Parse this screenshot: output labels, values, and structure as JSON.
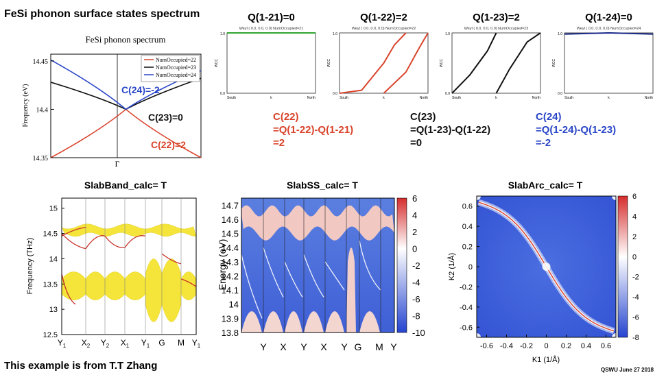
{
  "slide": {
    "title": "FeSi  phonon surface states spectrum",
    "credit": "This example is from T.T Zhang",
    "footer": "QSWU June 27 2018"
  },
  "colors": {
    "red": "#d9432b",
    "black": "#111111",
    "blue": "#2a46c8",
    "green": "#2ea52e",
    "navy": "#1a2a8a",
    "yellow": "#f5e53a"
  },
  "notes": {
    "c22": [
      "C(22)",
      "=Q(1-22)-Q(1-21)",
      "=2"
    ],
    "c23": [
      "C(23)",
      "=Q(1-23)-Q(1-22)",
      "=0"
    ],
    "c24": [
      "C(24)",
      "=Q(1-24)-Q(1-23)",
      "=-2"
    ]
  },
  "chart_data": [
    {
      "type": "line",
      "title": "FeSi phonon spectrum",
      "ylabel": "Frequency (eV)",
      "x_tick": "Γ",
      "ylim": [
        14.35,
        14.46
      ],
      "yticks": [
        "14.45",
        "14.4",
        "14.35"
      ],
      "legend": [
        "NumOccupied=22",
        "NumOccupied=23",
        "NumOccupied=24"
      ],
      "legend_position": "top-right",
      "annotations": [
        "C(24)=-2",
        "C(23)=0",
        "C(22)=2"
      ],
      "series": [
        {
          "name": "NumOccupied=22",
          "color": "red",
          "x": [
            -1,
            0,
            1
          ],
          "y": [
            14.35,
            14.4,
            14.35
          ]
        },
        {
          "name": "NumOccupied=23",
          "color": "black",
          "x": [
            -1,
            0,
            1
          ],
          "y": [
            14.428,
            14.4,
            14.432
          ]
        },
        {
          "name": "NumOccupied=24",
          "color": "blue",
          "x": [
            -1,
            0,
            1
          ],
          "y": [
            14.451,
            14.4,
            14.44
          ]
        }
      ]
    },
    {
      "type": "line",
      "panels": [
        {
          "title": "Q(1-21)=0",
          "subtitle": "Weyl ( 0.0, 0.0, 0.0) NumOccupied=21",
          "color": "green",
          "curves": [
            [
              [
                0,
                1
              ],
              [
                1,
                1
              ]
            ]
          ]
        },
        {
          "title": "Q(1-22)=2",
          "subtitle": "Weyl ( 0.0, 0.0, 0.0) NumOccupied=22",
          "color": "red",
          "curves": [
            [
              [
                0,
                0
              ],
              [
                0.25,
                0.05
              ],
              [
                0.5,
                0.5
              ],
              [
                0.62,
                0.8
              ],
              [
                0.75,
                1
              ]
            ],
            [
              [
                0.5,
                0
              ],
              [
                0.75,
                0.35
              ],
              [
                0.9,
                0.75
              ],
              [
                1,
                1
              ]
            ]
          ]
        },
        {
          "title": "Q(1-23)=2",
          "subtitle": "Weyl ( 0.0, 0.0, 0.0) NumOccupied=23",
          "color": "black",
          "curves": [
            [
              [
                0,
                0
              ],
              [
                0.2,
                0.3
              ],
              [
                0.4,
                0.7
              ],
              [
                0.5,
                1
              ]
            ],
            [
              [
                0.5,
                0
              ],
              [
                0.65,
                0.4
              ],
              [
                0.85,
                0.85
              ],
              [
                1,
                1
              ]
            ]
          ]
        },
        {
          "title": "Q(1-24)=0",
          "subtitle": "Weyl ( 0.0, 0.0, 0.0) NumOccupied=24",
          "color": "navy",
          "curves": [
            [
              [
                0,
                0.98
              ],
              [
                0.5,
                1
              ],
              [
                1,
                0.98
              ]
            ]
          ]
        }
      ],
      "xticks": [
        "South",
        "k",
        "North"
      ],
      "yticks": [
        "0.0",
        "1.0"
      ],
      "ylabel": "WCC"
    },
    {
      "type": "line",
      "title": "SlabBand_calc= T",
      "ylabel": "Frequency (THz)",
      "ylim": [
        12.5,
        15.2
      ],
      "yticks": [
        "15",
        "14.5",
        "14",
        "13.5",
        "13",
        "12.5"
      ],
      "xticks": [
        "Y1",
        "X2",
        "Y2",
        "X1",
        "Y1",
        "G",
        "M",
        "Y1"
      ]
    },
    {
      "type": "heatmap",
      "title": "SlabSS_calc= T",
      "ylabel": "Energy (eV)",
      "ylim": [
        13.8,
        14.75
      ],
      "yticks": [
        "14.7",
        "14.6",
        "14.5",
        "14.4",
        "14.3",
        "14.2",
        "14.1",
        "14",
        "13.9",
        "13.8"
      ],
      "xticks": [
        "Y",
        "X",
        "Y",
        "X",
        "Y",
        "G",
        "M",
        "Y"
      ],
      "colorbar": {
        "min": -10,
        "max": 6,
        "ticks": [
          "6",
          "4",
          "2",
          "0",
          "-2",
          "-4",
          "-6",
          "-8",
          "-10"
        ]
      }
    },
    {
      "type": "heatmap",
      "title": "SlabArc_calc= T",
      "xlabel": "K1 (1/Å)",
      "ylabel": "K2 (1/Å)",
      "xlim": [
        -0.7,
        0.7
      ],
      "ylim": [
        -0.7,
        0.7
      ],
      "xticks": [
        "-0.6",
        "-0.4",
        "-0.2",
        "0",
        "0.2",
        "0.4",
        "0.6"
      ],
      "yticks": [
        "0.6",
        "0.4",
        "0.2",
        "0",
        "-0.2",
        "-0.4",
        "-0.6"
      ],
      "colorbar": {
        "min": -8,
        "max": 6,
        "ticks": [
          "6",
          "4",
          "2",
          "0",
          "-2",
          "-4",
          "-6",
          "-8"
        ]
      }
    }
  ]
}
